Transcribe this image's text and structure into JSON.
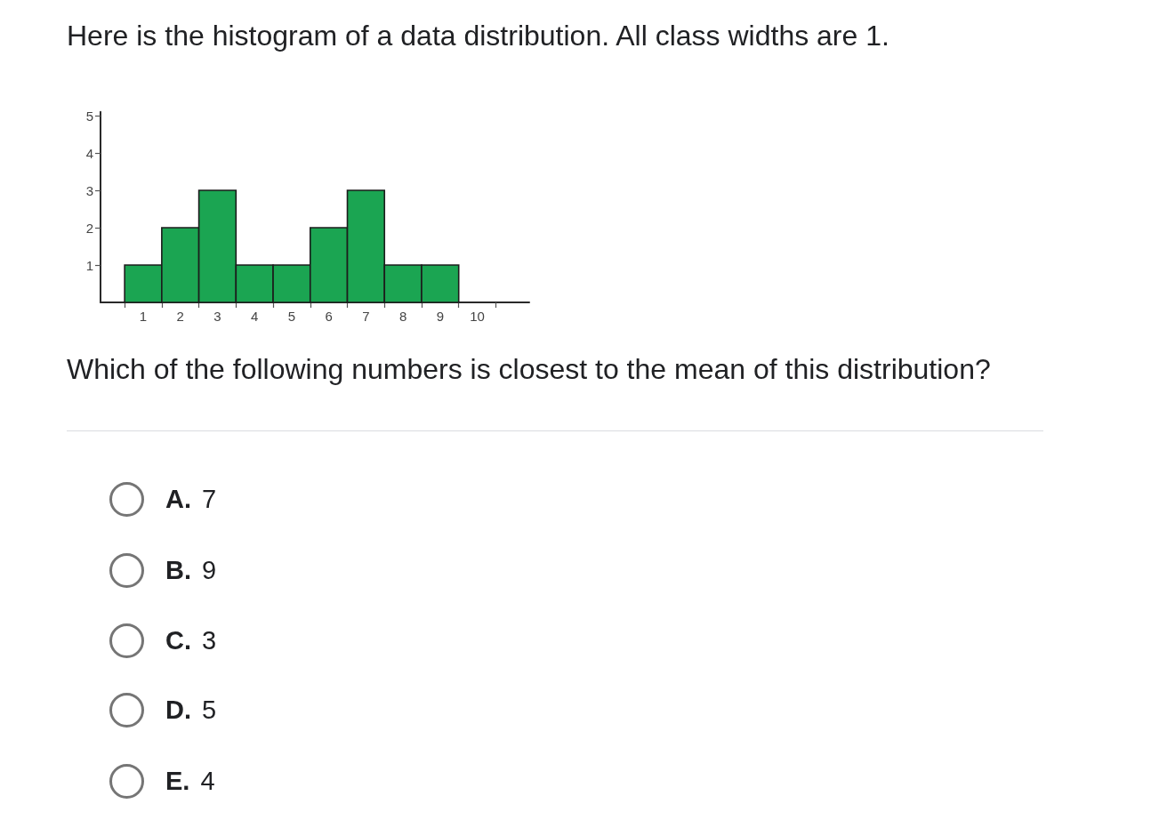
{
  "chart_data": {
    "type": "histogram",
    "title": "Here is the histogram of a data distribution. All class widths are 1.",
    "bins": [
      0.5,
      1.5,
      2.5,
      3.5,
      4.5,
      5.5,
      6.5,
      7.5,
      8.5,
      9.5
    ],
    "values": [
      1,
      2,
      3,
      1,
      1,
      2,
      3,
      1,
      1
    ],
    "color": "#1ba552",
    "xlim": [
      -0.15,
      11.4
    ],
    "xticks": [
      {
        "value": 0.5,
        "label": null
      },
      1,
      {
        "value": 1.5,
        "label": null
      },
      2,
      {
        "value": 2.5,
        "label": null
      },
      3,
      {
        "value": 3.5,
        "label": null
      },
      4,
      {
        "value": 4.5,
        "label": null
      },
      5,
      {
        "value": 5.5,
        "label": null
      },
      6,
      {
        "value": 6.5,
        "label": null
      },
      7,
      {
        "value": 7.5,
        "label": null
      },
      8,
      {
        "value": 8.5,
        "label": null
      },
      9,
      {
        "value": 9.5,
        "label": null
      },
      10,
      {
        "value": 10.5,
        "label": null
      }
    ],
    "ylim": [
      0,
      5.1
    ],
    "yticks": [
      1,
      2,
      3,
      4,
      5
    ],
    "grid": false,
    "annotations": [
      "Which of the following numbers is closest to the mean of this distribution?",
      "A. 7",
      "B. 9",
      "C. 3",
      "D. 5",
      "E. 4"
    ]
  }
}
